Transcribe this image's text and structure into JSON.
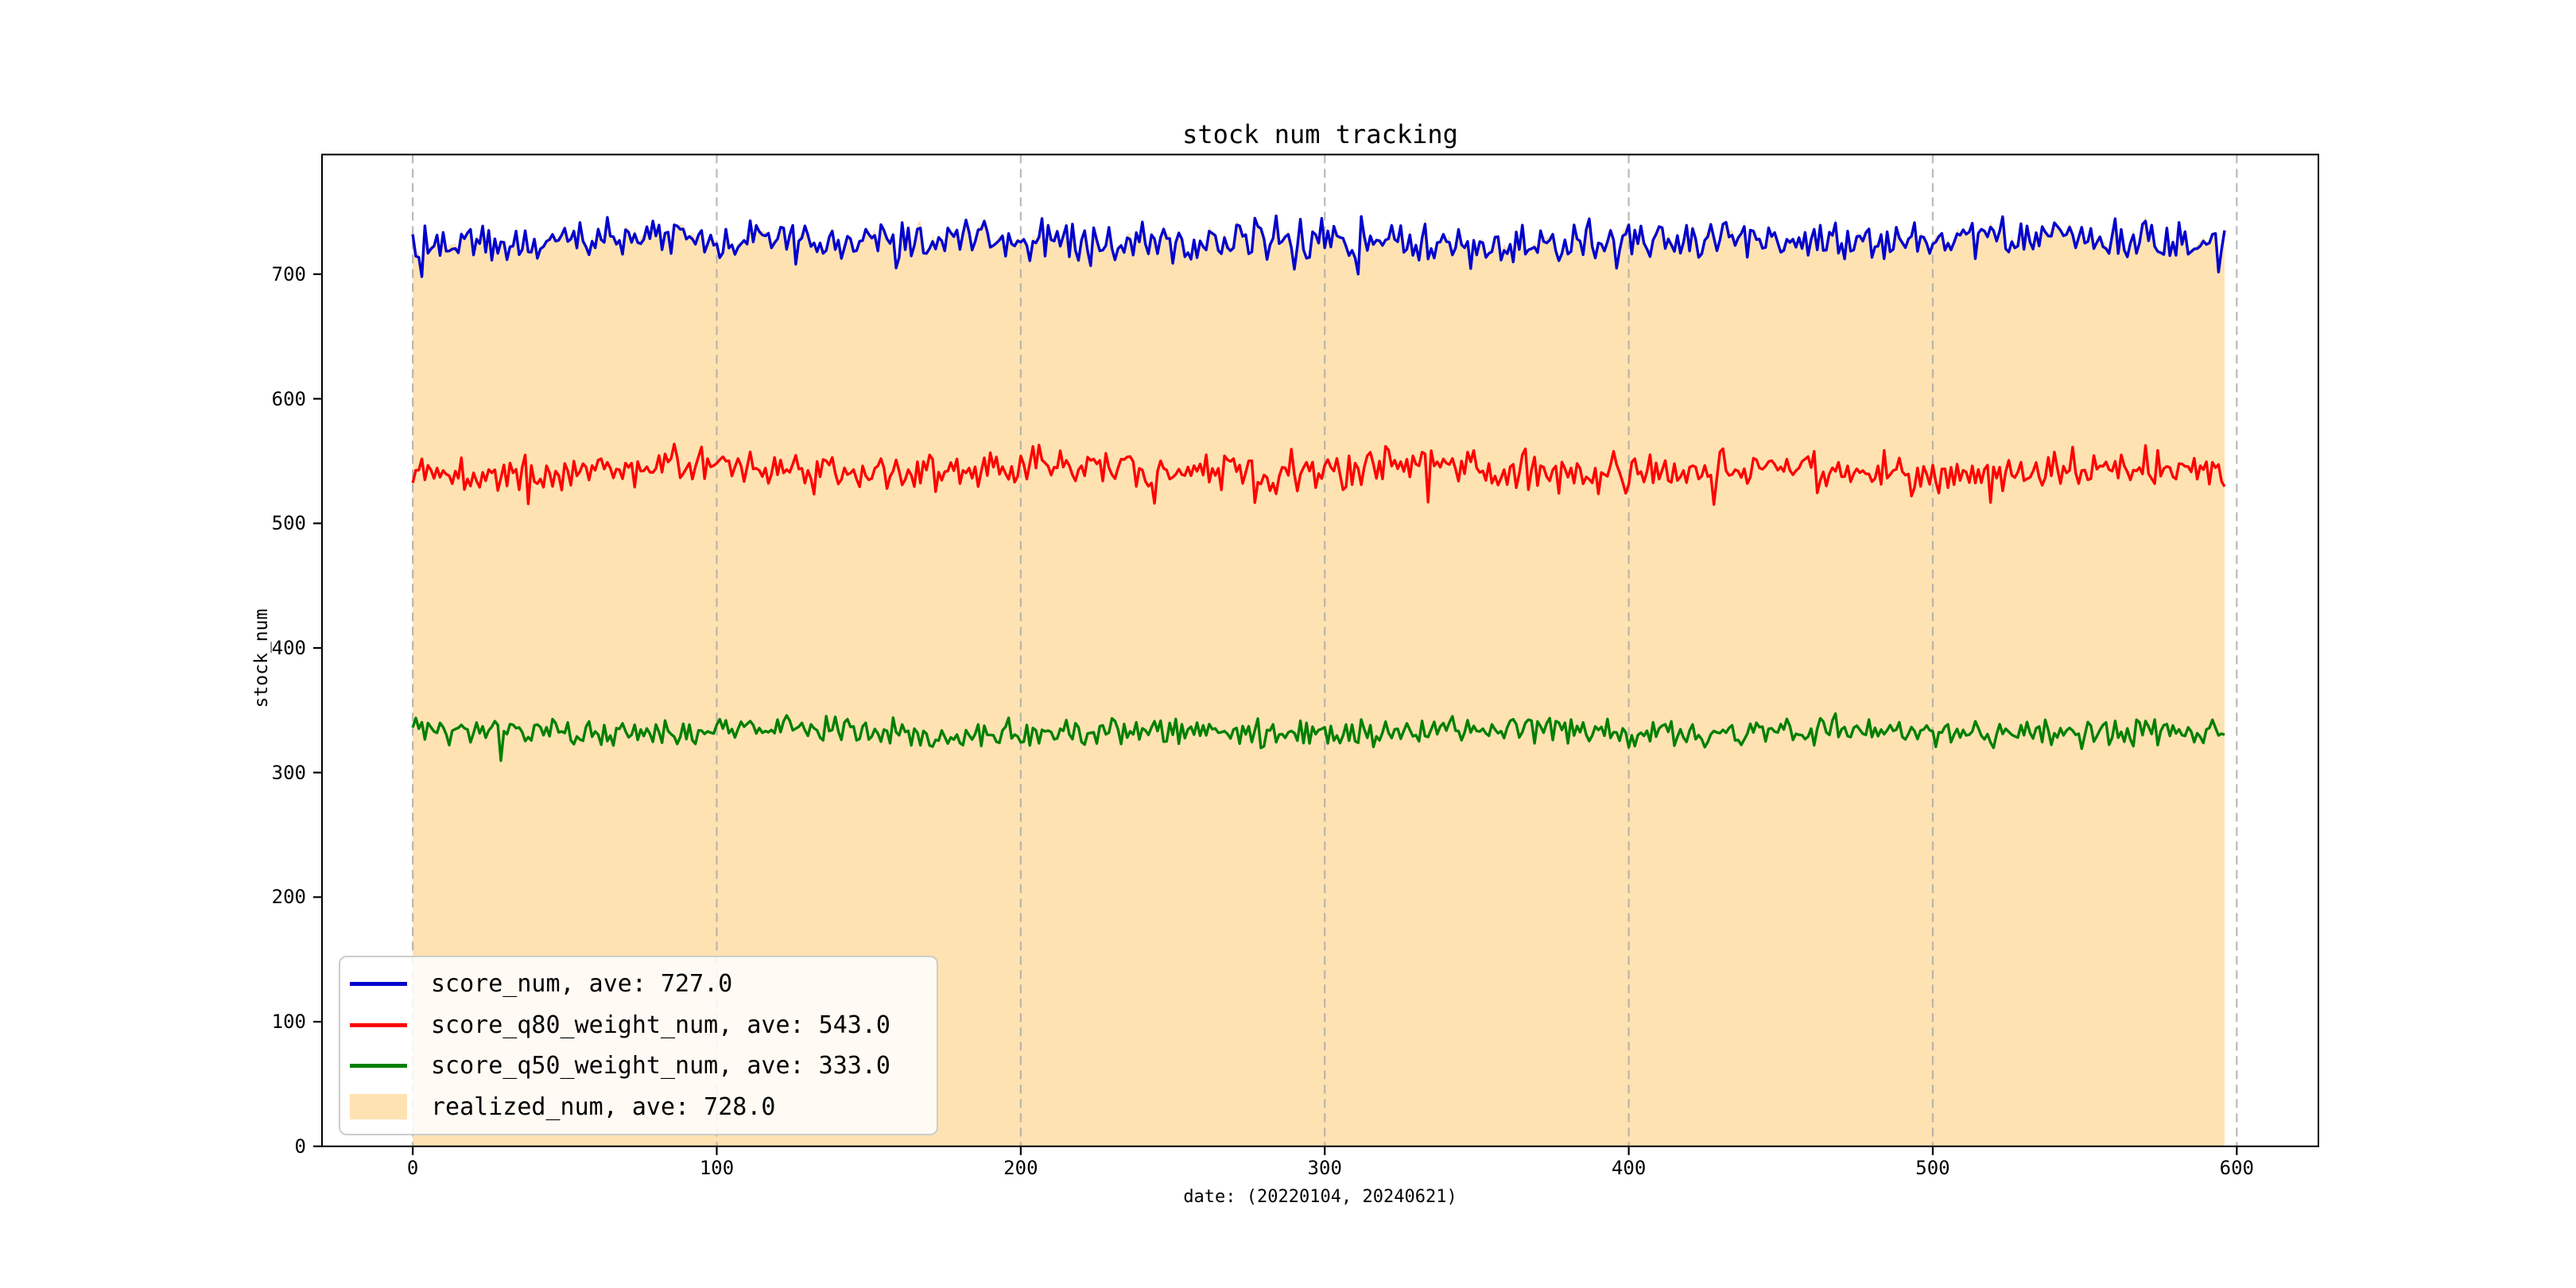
{
  "title": "stock num tracking",
  "chart_data": {
    "type": "line",
    "title": "stock num tracking",
    "xlabel": "date: (20220104, 20240621)",
    "ylabel": "stock_num",
    "xlim": [
      -29.85,
      626.85
    ],
    "ylim": [
      0,
      796
    ],
    "xticks": [
      0,
      100,
      200,
      300,
      400,
      500,
      600
    ],
    "yticks": [
      0,
      100,
      200,
      300,
      400,
      500,
      600,
      700
    ],
    "x_range": [
      0,
      596
    ],
    "n_points": 597,
    "grid": {
      "axis": "x",
      "style": "dashed",
      "color": "#a9a9a9"
    },
    "legend_position": "lower left",
    "series": [
      {
        "name": "score_num",
        "type": "line",
        "color": "#0000cd",
        "mean": 727,
        "amplitude": 11,
        "seed": 11,
        "label": "score_num, ave: 727.0",
        "ave": 727.0
      },
      {
        "name": "score_q80_weight_num",
        "type": "line",
        "color": "#ff0000",
        "mean": 543,
        "amplitude": 11,
        "seed": 22,
        "label": "score_q80_weight_num, ave: 543.0",
        "ave": 543.0
      },
      {
        "name": "score_q50_weight_num",
        "type": "line",
        "color": "#008000",
        "mean": 333,
        "amplitude": 8,
        "seed": 33,
        "label": "score_q50_weight_num, ave: 333.0",
        "ave": 333.0
      },
      {
        "name": "realized_num",
        "type": "area",
        "color": "#ffe2b2",
        "mean": 728,
        "amplitude": 4.5,
        "seed": 44,
        "correlated_with": "score_num",
        "label": "realized_num, ave: 728.0",
        "ave": 728.0
      }
    ]
  }
}
